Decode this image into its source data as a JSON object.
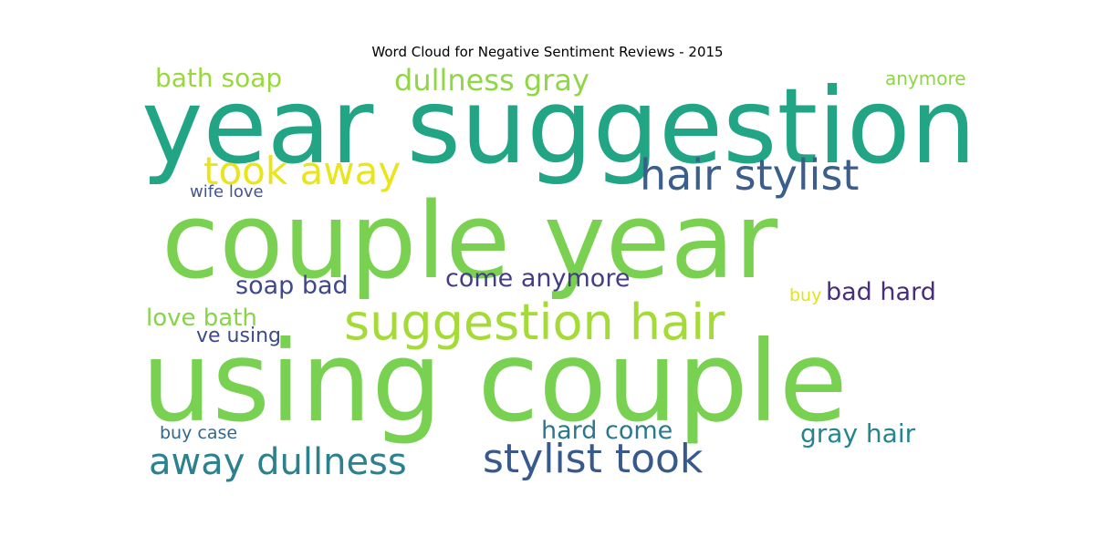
{
  "chart_data": {
    "type": "wordcloud",
    "title": "Word Cloud for Negative Sentiment Reviews - 2015",
    "words": [
      {
        "text": "year suggestion",
        "color": "#21a585"
      },
      {
        "text": "couple year",
        "color": "#7ad151"
      },
      {
        "text": "using couple",
        "color": "#79d151"
      },
      {
        "text": "suggestion hair",
        "color": "#a5db36"
      },
      {
        "text": "hair stylist",
        "color": "#3b5e8c"
      },
      {
        "text": "took away",
        "color": "#eae51a"
      },
      {
        "text": "stylist took",
        "color": "#38598c"
      },
      {
        "text": "away dullness",
        "color": "#2c818e"
      },
      {
        "text": "dullness gray",
        "color": "#8fd744"
      },
      {
        "text": "bath soap",
        "color": "#98d83e"
      },
      {
        "text": "come anymore",
        "color": "#433d84"
      },
      {
        "text": "soap bad",
        "color": "#3f4889"
      },
      {
        "text": "bad hard",
        "color": "#472e7c"
      },
      {
        "text": "love bath",
        "color": "#86d549"
      },
      {
        "text": "gray hair",
        "color": "#25848e"
      },
      {
        "text": "hard come",
        "color": "#2a778e"
      },
      {
        "text": "ve using",
        "color": "#3e4a89"
      },
      {
        "text": "wife love",
        "color": "#46558f"
      },
      {
        "text": "anymore",
        "color": "#8ed645"
      },
      {
        "text": "buy case",
        "color": "#31688e"
      },
      {
        "text": "buy",
        "color": "#e3e418"
      }
    ]
  }
}
